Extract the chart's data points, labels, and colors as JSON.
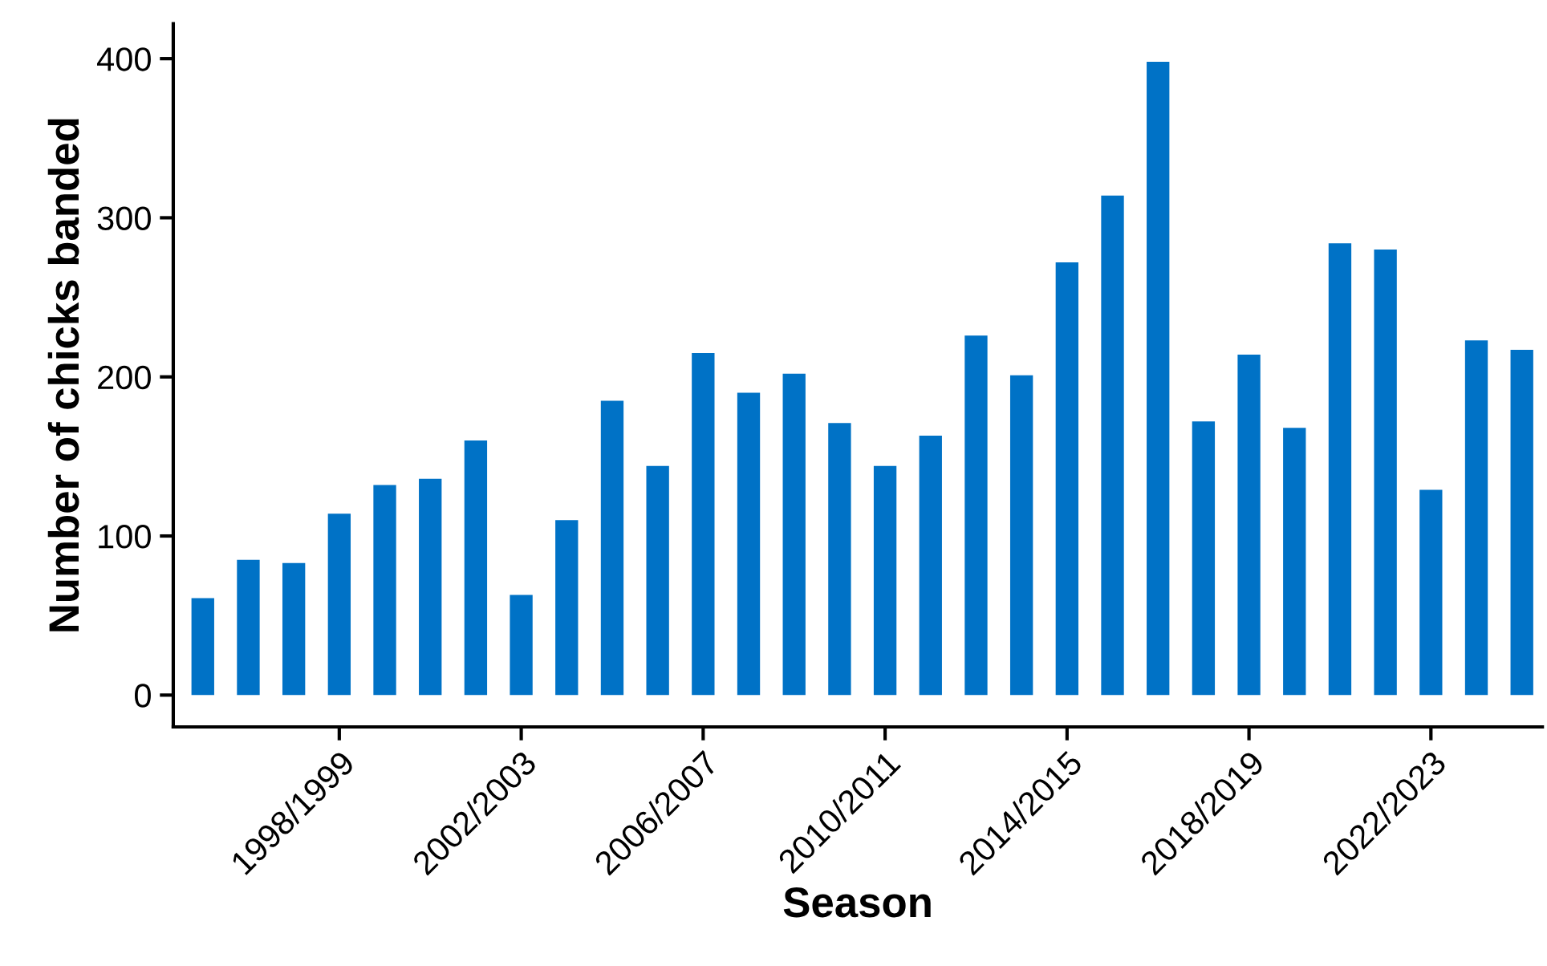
{
  "chart_data": {
    "type": "bar",
    "xlabel": "Season",
    "ylabel": "Number of chicks banded",
    "categories": [
      null,
      null,
      null,
      "1998/1999",
      null,
      null,
      null,
      "2002/2003",
      null,
      null,
      null,
      "2006/2007",
      null,
      null,
      null,
      "2010/2011",
      null,
      null,
      null,
      "2014/2015",
      null,
      null,
      null,
      "2018/2019",
      null,
      null,
      null,
      "2022/2023",
      null,
      null
    ],
    "values": [
      61,
      85,
      83,
      114,
      132,
      136,
      160,
      63,
      110,
      185,
      144,
      215,
      190,
      202,
      171,
      144,
      163,
      226,
      201,
      272,
      314,
      398,
      172,
      214,
      168,
      284,
      280,
      129,
      223,
      217
    ],
    "color": "#0072c6",
    "ylim": [
      -20,
      422
    ],
    "yticks": [
      0,
      100,
      200,
      300,
      400
    ],
    "grid": false,
    "legend": false
  }
}
